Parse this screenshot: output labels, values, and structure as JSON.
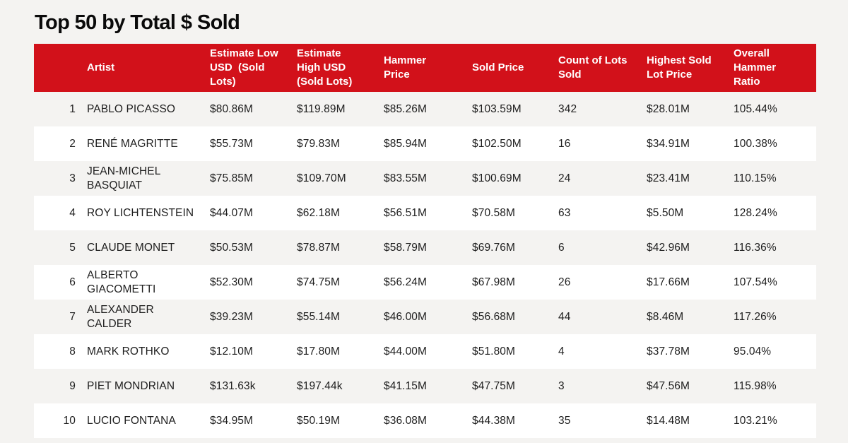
{
  "page": {
    "title": "Top 50 by Total $ Sold"
  },
  "colors": {
    "header_red": "#d2111a",
    "header_text": "#ffffff",
    "row_stripe_gray": "#f4f3f1",
    "row_white": "#ffffff",
    "body_text": "#1e1e1e",
    "title_text": "#0a0a0a"
  },
  "chart_data": {
    "type": "table",
    "title": "Top 50 by Total $ Sold",
    "column_headers": [
      "",
      "Artist",
      "Estimate Low\nUSD  (Sold\nLots)",
      "Estimate\nHigh USD\n(Sold Lots)",
      "Hammer\nPrice",
      "Sold Price",
      "Count of Lots\nSold",
      "Highest Sold\nLot Price",
      "Overall\nHammer\nRatio"
    ],
    "rows": [
      [
        "1",
        "PABLO PICASSO",
        "$80.86M",
        "$119.89M",
        "$85.26M",
        "$103.59M",
        "342",
        "$28.01M",
        "105.44%"
      ],
      [
        "2",
        "RENÉ MAGRITTE",
        "$55.73M",
        "$79.83M",
        "$85.94M",
        "$102.50M",
        "16",
        "$34.91M",
        "100.38%"
      ],
      [
        "3",
        "JEAN-MICHEL\nBASQUIAT",
        "$75.85M",
        "$109.70M",
        "$83.55M",
        "$100.69M",
        "24",
        "$23.41M",
        "110.15%"
      ],
      [
        "4",
        "ROY LICHTENSTEIN",
        "$44.07M",
        "$62.18M",
        "$56.51M",
        "$70.58M",
        "63",
        "$5.50M",
        "128.24%"
      ],
      [
        "5",
        "CLAUDE MONET",
        "$50.53M",
        "$78.87M",
        "$58.79M",
        "$69.76M",
        "6",
        "$42.96M",
        "116.36%"
      ],
      [
        "6",
        "ALBERTO\nGIACOMETTI",
        "$52.30M",
        "$74.75M",
        "$56.24M",
        "$67.98M",
        "26",
        "$17.66M",
        "107.54%"
      ],
      [
        "7",
        "ALEXANDER\nCALDER",
        "$39.23M",
        "$55.14M",
        "$46.00M",
        "$56.68M",
        "44",
        "$8.46M",
        "117.26%"
      ],
      [
        "8",
        "MARK ROTHKO",
        "$12.10M",
        "$17.80M",
        "$44.00M",
        "$51.80M",
        "4",
        "$37.78M",
        "95.04%"
      ],
      [
        "9",
        "PIET MONDRIAN",
        "$131.63k",
        "$197.44k",
        "$41.15M",
        "$47.75M",
        "3",
        "$47.56M",
        "115.98%"
      ],
      [
        "10",
        "LUCIO FONTANA",
        "$34.95M",
        "$50.19M",
        "$36.08M",
        "$44.38M",
        "35",
        "$14.48M",
        "103.21%"
      ]
    ]
  }
}
